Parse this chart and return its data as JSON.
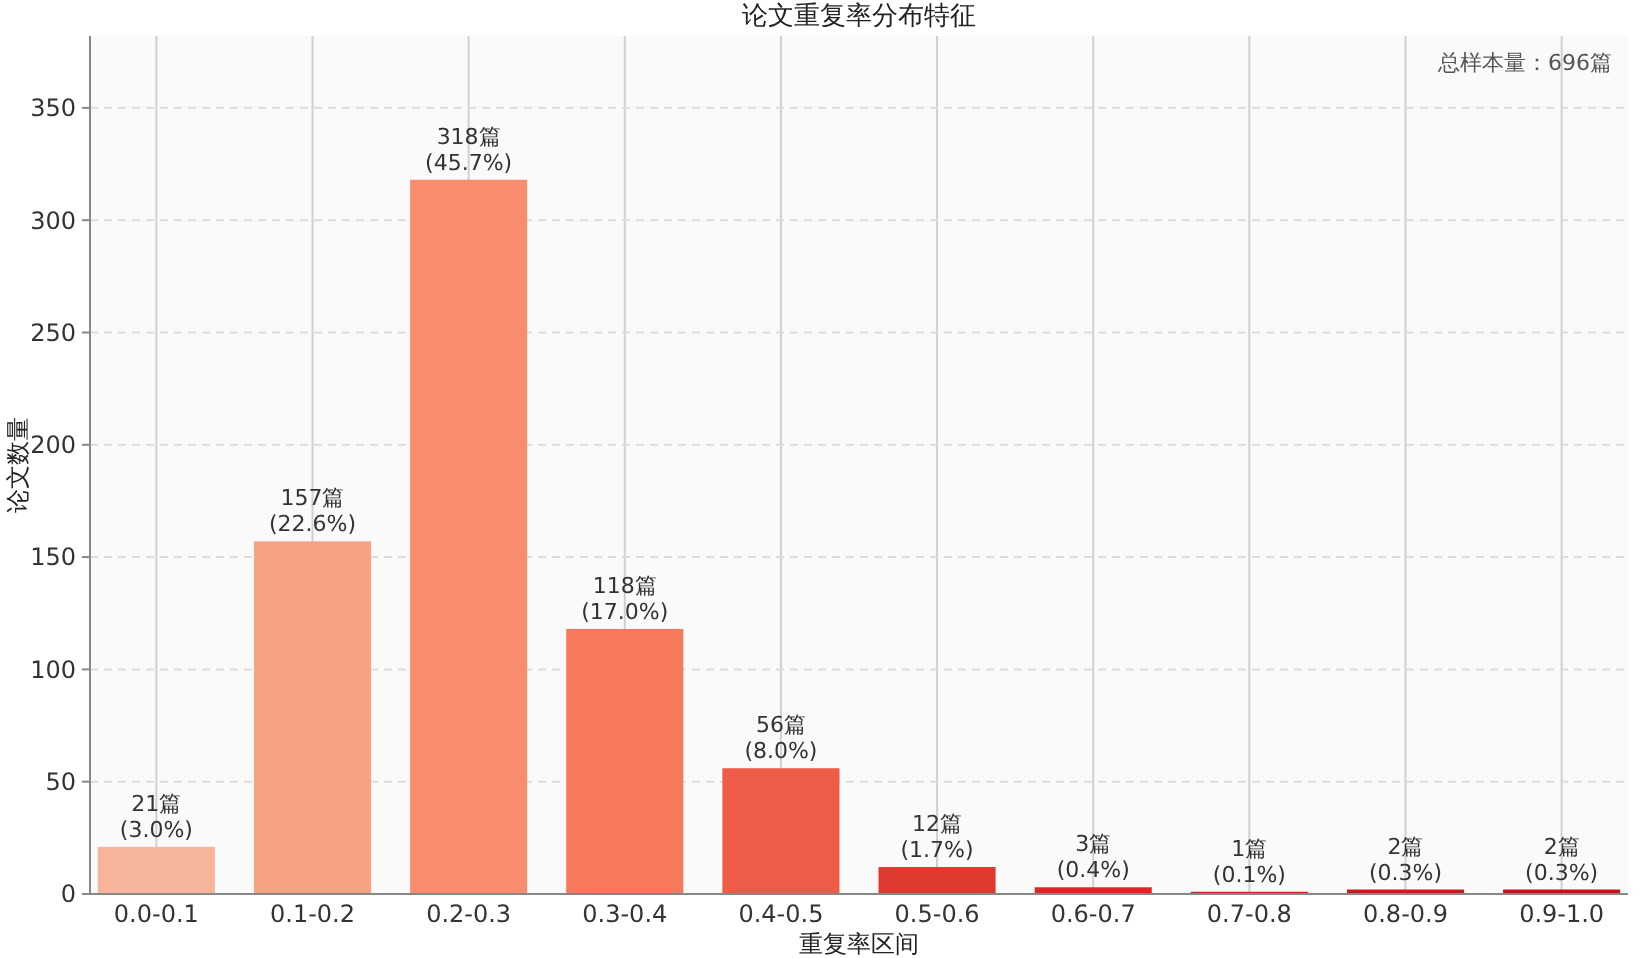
{
  "chart_data": {
    "type": "bar",
    "title": "论文重复率分布特征",
    "xlabel": "重复率区间",
    "ylabel": "论文数量",
    "categories": [
      "0.0-0.1",
      "0.1-0.2",
      "0.2-0.3",
      "0.3-0.4",
      "0.4-0.5",
      "0.5-0.6",
      "0.6-0.7",
      "0.7-0.8",
      "0.8-0.9",
      "0.9-1.0"
    ],
    "values": [
      21,
      157,
      318,
      118,
      56,
      12,
      3,
      1,
      2,
      2
    ],
    "colors": [
      "#f6b59b",
      "#f8a284",
      "#fa8c6f",
      "#f7795c",
      "#ee5b47",
      "#df3a2f",
      "#d52a25",
      "#cc2222",
      "#c41e1e",
      "#b81a1a"
    ],
    "value_labels": [
      "21篇\n(3.0%)",
      "157篇\n(22.6%)",
      "318篇\n(45.7%)",
      "118篇\n(17.0%)",
      "56篇\n(8.0%)",
      "12篇\n(1.7%)",
      "3篇\n(0.4%)",
      "1篇\n(0.1%)",
      "2篇\n(0.3%)",
      "2篇\n(0.3%)"
    ],
    "ylim": [
      0,
      382
    ],
    "yticks": [
      0,
      50,
      100,
      150,
      200,
      250,
      300,
      350
    ],
    "grid": true,
    "annotations": [
      "总样本量：696篇"
    ]
  }
}
